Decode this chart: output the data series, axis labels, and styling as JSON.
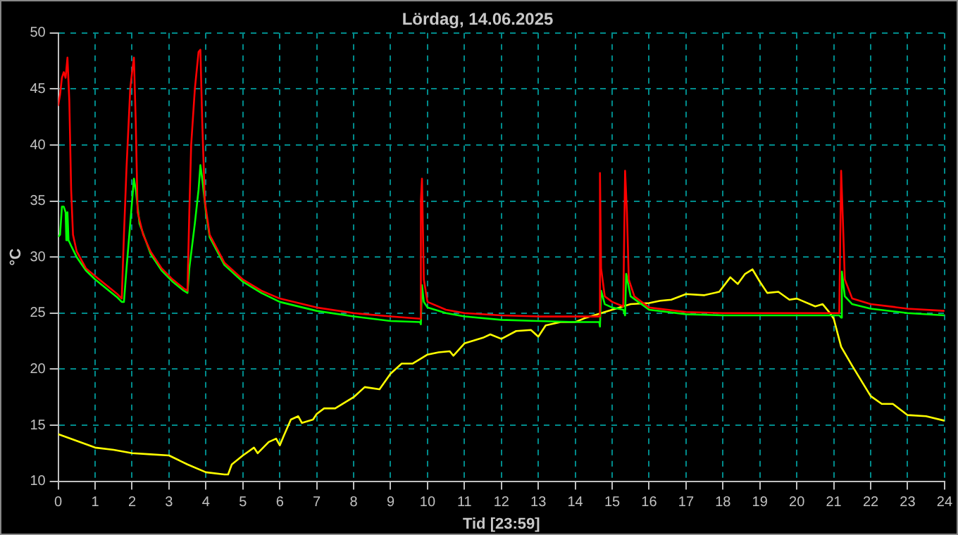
{
  "chart_data": {
    "type": "line",
    "title": "Lördag, 14.06.2025",
    "xlabel": "Tid [23:59]",
    "ylabel": "°C",
    "xlim": [
      0,
      24
    ],
    "xticks": [
      0,
      1,
      2,
      3,
      4,
      5,
      6,
      7,
      8,
      9,
      10,
      11,
      12,
      13,
      14,
      15,
      16,
      17,
      18,
      19,
      20,
      21,
      22,
      23,
      24
    ],
    "ylim": [
      10,
      50
    ],
    "yticks": [
      10,
      15,
      20,
      25,
      30,
      35,
      40,
      45,
      50
    ],
    "grid": true,
    "legend": false,
    "marker": "none",
    "line_style": "solid",
    "series": [
      {
        "color": "#ff0000",
        "x": [
          0,
          0.05,
          0.1,
          0.15,
          0.2,
          0.25,
          0.3,
          0.35,
          0.4,
          0.5,
          0.75,
          1,
          1.3,
          1.6,
          1.72,
          1.78,
          1.85,
          1.95,
          2.0,
          2.05,
          2.1,
          2.15,
          2.3,
          2.5,
          2.8,
          3.1,
          3.4,
          3.5,
          3.55,
          3.6,
          3.7,
          3.8,
          3.85,
          3.9,
          3.97,
          4.1,
          4.5,
          5,
          5.5,
          6,
          7,
          8,
          9,
          9.8,
          9.82,
          9.85,
          9.9,
          10,
          10.5,
          11,
          12,
          13,
          14,
          14.65,
          14.67,
          14.7,
          14.8,
          15,
          15.3,
          15.35,
          15.4,
          15.45,
          15.6,
          16,
          17,
          18,
          19,
          20,
          21.15,
          21.2,
          21.25,
          21.3,
          21.5,
          22,
          23,
          24
        ],
        "values": [
          43.5,
          44.5,
          46,
          46.5,
          46,
          47.8,
          44,
          36,
          32,
          30.5,
          29,
          28.3,
          27.5,
          26.7,
          26.3,
          32,
          38,
          45,
          46.5,
          47.8,
          42,
          34,
          32,
          30.5,
          29,
          28,
          27.2,
          27,
          34,
          40,
          45,
          48.3,
          48.5,
          42,
          35,
          32,
          29.5,
          28,
          27,
          26.3,
          25.5,
          25,
          24.7,
          24.5,
          35,
          37,
          28,
          26,
          25.3,
          25,
          24.8,
          24.7,
          24.7,
          24.7,
          37.5,
          29,
          26.5,
          26,
          25.6,
          37.7,
          34,
          28,
          26.5,
          25.5,
          25.1,
          25,
          25,
          25,
          25,
          37.7,
          33,
          28,
          26.3,
          25.8,
          25.4,
          25.2
        ]
      },
      {
        "color": "#00ff00",
        "x": [
          0,
          0.05,
          0.1,
          0.15,
          0.2,
          0.22,
          0.25,
          0.28,
          0.35,
          0.5,
          0.75,
          1,
          1.3,
          1.6,
          1.72,
          1.78,
          1.85,
          1.95,
          2.0,
          2.05,
          2.1,
          2.2,
          2.5,
          2.8,
          3.1,
          3.4,
          3.5,
          3.55,
          3.7,
          3.8,
          3.85,
          3.9,
          4.0,
          4.1,
          4.5,
          5,
          5.5,
          6,
          7,
          8,
          9,
          9.8,
          9.82,
          9.85,
          9.9,
          10,
          10.5,
          11,
          12,
          13,
          14,
          14.65,
          14.67,
          14.7,
          14.8,
          15,
          15.3,
          15.35,
          15.38,
          15.5,
          16,
          17,
          18,
          19,
          20,
          21.15,
          21.2,
          21.22,
          21.3,
          21.5,
          22,
          23,
          24
        ],
        "values": [
          31.8,
          32,
          34.5,
          34.5,
          34,
          31.5,
          34,
          31.5,
          31,
          30,
          28.8,
          28,
          27.2,
          26.4,
          26,
          26,
          29,
          33,
          35,
          37,
          36,
          33,
          30.3,
          28.8,
          27.8,
          27,
          26.8,
          29,
          33,
          36,
          38.2,
          37,
          34,
          31.8,
          29.3,
          27.8,
          26.8,
          26,
          25.2,
          24.7,
          24.3,
          24.2,
          24,
          27.5,
          26,
          25.5,
          25,
          24.7,
          24.4,
          24.3,
          24.2,
          24.2,
          23.8,
          27,
          25.8,
          25.5,
          25.3,
          24.8,
          28.5,
          26.5,
          25.3,
          24.9,
          24.8,
          24.8,
          24.8,
          24.8,
          24.6,
          28.7,
          26.5,
          25.8,
          25.4,
          25,
          24.8
        ]
      },
      {
        "color": "#ffff00",
        "x": [
          0,
          0.5,
          1,
          1.5,
          2,
          2.5,
          3,
          3.5,
          4,
          4.5,
          4.6,
          4.7,
          5,
          5.3,
          5.4,
          5.7,
          5.9,
          6,
          6.1,
          6.3,
          6.5,
          6.6,
          6.9,
          7,
          7.2,
          7.5,
          8,
          8.3,
          8.7,
          9,
          9.3,
          9.6,
          10,
          10.3,
          10.6,
          10.7,
          11,
          11.5,
          11.7,
          12,
          12.4,
          12.8,
          13,
          13.2,
          13.6,
          14,
          14.3,
          14.6,
          15,
          15.5,
          16,
          16.3,
          16.6,
          17,
          17.5,
          17.9,
          18.2,
          18.4,
          18.6,
          18.8,
          19,
          19.2,
          19.5,
          19.8,
          20,
          20.5,
          20.7,
          20.9,
          21,
          21.2,
          21.5,
          22,
          22.3,
          22.6,
          23,
          23.5,
          24
        ],
        "values": [
          14.2,
          13.6,
          13,
          12.8,
          12.5,
          12.4,
          12.3,
          11.5,
          10.8,
          10.6,
          10.6,
          11.5,
          12.3,
          13,
          12.5,
          13.5,
          13.8,
          13.2,
          14,
          15.5,
          15.8,
          15.2,
          15.5,
          16,
          16.5,
          16.5,
          17.5,
          18.4,
          18.2,
          19.6,
          20.5,
          20.5,
          21.3,
          21.5,
          21.6,
          21.2,
          22.3,
          22.8,
          23.1,
          22.7,
          23.4,
          23.5,
          22.9,
          23.9,
          24.2,
          24.2,
          24.6,
          24.9,
          25.3,
          25.8,
          25.9,
          26.1,
          26.2,
          26.7,
          26.6,
          26.9,
          28.2,
          27.6,
          28.5,
          28.9,
          27.8,
          26.8,
          26.9,
          26.2,
          26.3,
          25.6,
          25.8,
          25,
          24.5,
          22,
          20.3,
          17.6,
          16.9,
          16.9,
          15.9,
          15.8,
          15.4
        ]
      }
    ]
  }
}
